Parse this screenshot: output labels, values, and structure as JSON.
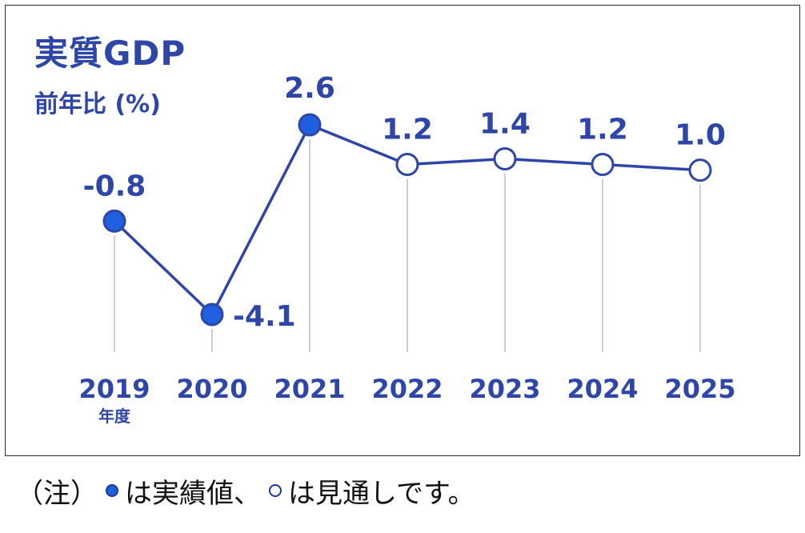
{
  "chart_data": {
    "type": "line",
    "title": "実質GDP",
    "ylabel": "前年比 (%)",
    "categories": [
      "2019",
      "2020",
      "2021",
      "2022",
      "2023",
      "2024",
      "2025"
    ],
    "x_sublabels": [
      "年度",
      "",
      "",
      "",
      "",
      "",
      ""
    ],
    "series": [
      {
        "values": [
          -0.8,
          -4.1,
          2.6,
          1.2,
          1.4,
          1.2,
          1.0
        ],
        "value_labels": [
          "-0.8",
          "-4.1",
          "2.6",
          "1.2",
          "1.4",
          "1.2",
          "1.0"
        ],
        "point_types": [
          "actual",
          "actual",
          "actual",
          "forecast",
          "forecast",
          "forecast",
          "forecast"
        ]
      }
    ],
    "colors": {
      "line": "#2d46a8",
      "actual_fill": "#1f5fe0",
      "forecast_fill": "#ffffff",
      "text": "#2d46a8",
      "guide": "#aab4dc"
    },
    "grid": false
  },
  "legend": {
    "prefix": "（注）",
    "actual_text": "は実績値、",
    "forecast_text": "は見通しです。"
  }
}
